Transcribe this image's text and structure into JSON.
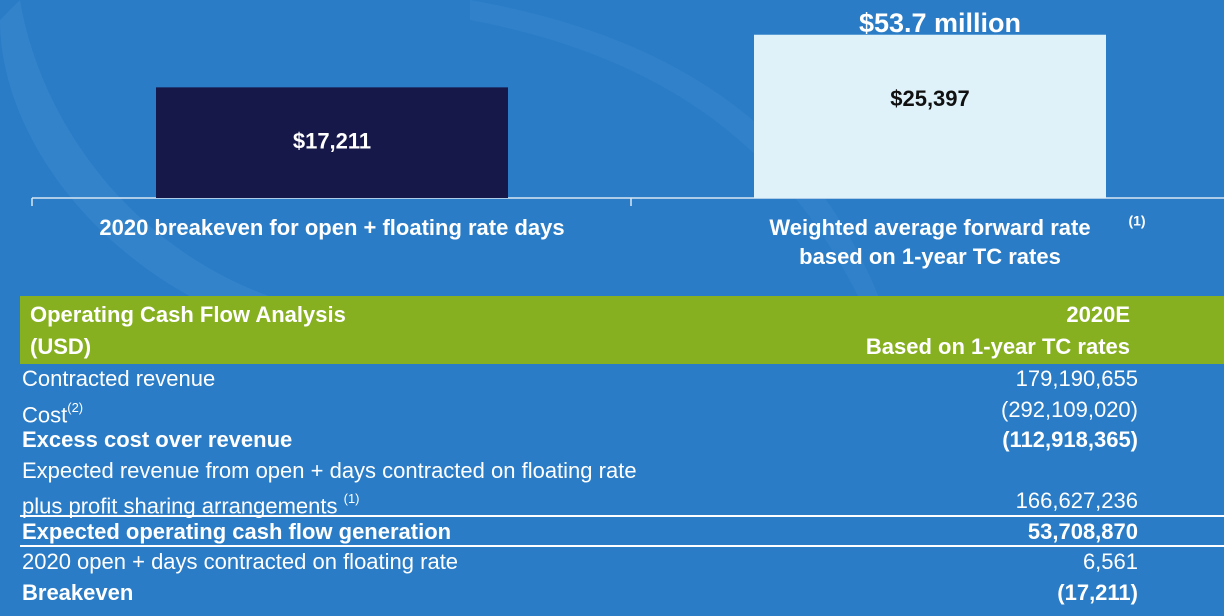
{
  "chart_data": {
    "type": "bar",
    "categories": [
      "2020 breakeven for open +  floating rate days",
      "Weighted average forward rate (1) based on 1-year TC rates"
    ],
    "category_lines": [
      [
        "2020 breakeven for open +  floating rate days"
      ],
      [
        "Weighted average forward rate",
        "based on 1-year TC rates"
      ]
    ],
    "category_footnotes": [
      "",
      "(1)"
    ],
    "values": [
      17211,
      25397
    ],
    "data_labels": [
      "$17,211",
      "$25,397"
    ],
    "annotation": "$53.7 million",
    "colors": [
      "#16184a",
      "#dff2fa"
    ],
    "label_colors": [
      "#ffffff",
      "#111111"
    ],
    "title": "",
    "xlabel": "",
    "ylabel": "",
    "ylim": [
      0,
      28000
    ],
    "grid": false
  },
  "table": {
    "header_left_1": "Operating Cash Flow Analysis",
    "header_left_2": "(USD)",
    "header_right_1": "2020E",
    "header_right_2": "Based on 1-year TC rates",
    "rows": [
      {
        "label": "Contracted revenue",
        "sup": "",
        "value": "179,190,655"
      },
      {
        "label": "Cost",
        "sup": "(2)",
        "value": "(292,109,020)"
      },
      {
        "label": "Excess cost over revenue",
        "sup": "",
        "value": "(112,918,365)"
      },
      {
        "label": "Expected revenue from open + days contracted on floating rate",
        "sup": "",
        "value": ""
      },
      {
        "label": "plus profit sharing arrangements ",
        "sup": "(1)",
        "value": "166,627,236"
      },
      {
        "label": "Expected operating cash flow generation",
        "sup": "",
        "value": "53,708,870"
      },
      {
        "label": "2020 open + days contracted on floating rate",
        "sup": "",
        "value": "6,561"
      },
      {
        "label": "Breakeven",
        "sup": "",
        "value": "(17,211)"
      }
    ]
  },
  "colors": {
    "background": "#2a7cc6",
    "header_green": "#86b01f"
  }
}
